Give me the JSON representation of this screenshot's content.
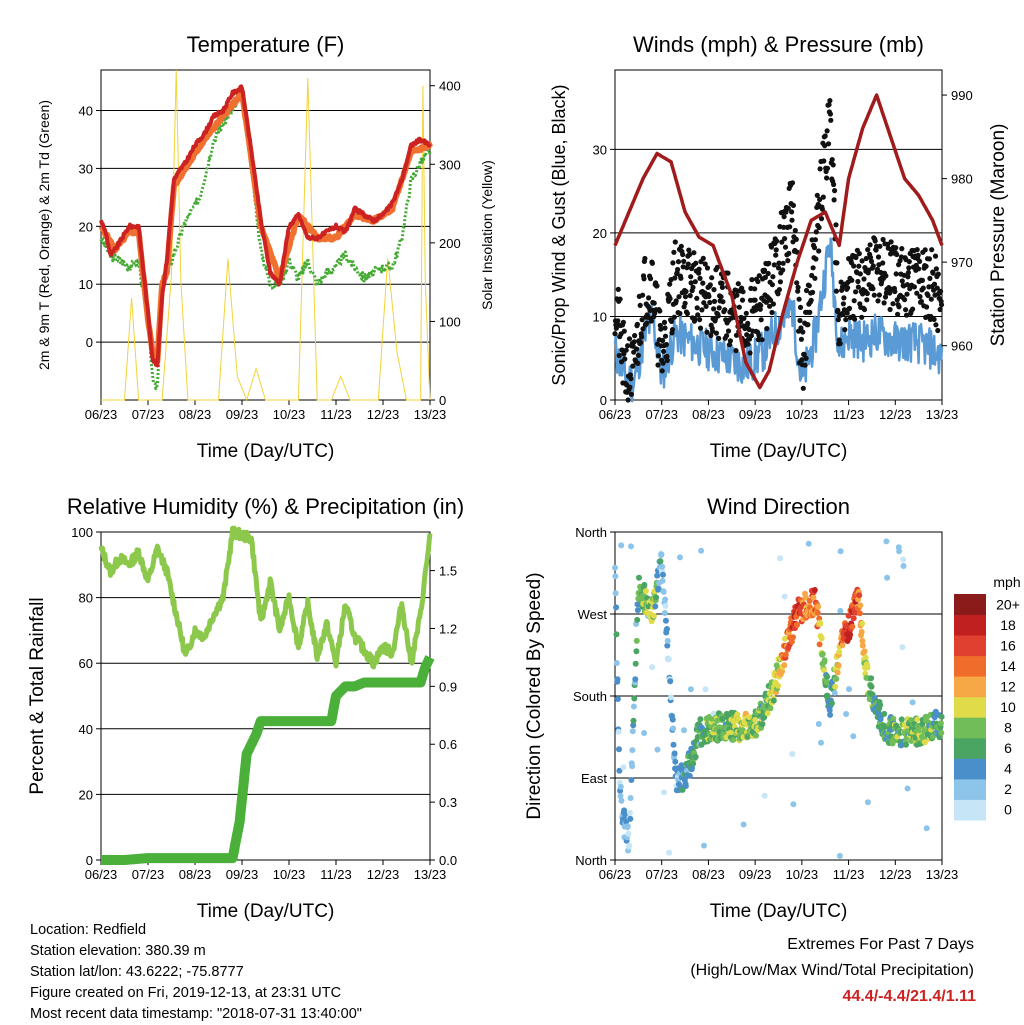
{
  "chart_data": [
    {
      "type": "line",
      "title": "Temperature (F)",
      "xlabel": "Time (Day/UTC)",
      "ylabel": "2m & 9m T (Red, Orange) & 2m Td (Green)",
      "y2label": "Solar Insolation (Yellow)",
      "x_ticks": [
        "06/23",
        "07/23",
        "08/23",
        "09/23",
        "10/23",
        "11/23",
        "12/23",
        "13/23"
      ],
      "ylim": [
        -10,
        47
      ],
      "y_ticks": [
        0,
        10,
        20,
        30,
        40
      ],
      "y2lim": [
        0,
        420
      ],
      "y2_ticks": [
        0,
        100,
        200,
        300,
        400
      ],
      "grid": "horizontal",
      "series": [
        {
          "color": "#cc2222",
          "x": [
            0,
            0.1,
            0.2,
            0.3,
            0.45,
            0.6,
            0.8,
            1.0,
            1.1,
            1.2,
            1.3,
            1.4,
            1.55,
            1.7,
            1.8,
            2.0,
            2.2,
            2.4,
            2.6,
            2.8,
            3.0,
            3.2,
            3.4,
            3.6,
            3.8,
            4.0,
            4.2,
            4.4,
            4.6,
            4.8,
            5.0,
            5.2,
            5.4,
            5.6,
            5.8,
            6.0,
            6.2,
            6.4,
            6.6,
            6.8,
            7.0
          ],
          "values": [
            21,
            19,
            15,
            16,
            18,
            20,
            20,
            5,
            -3,
            -4,
            8,
            14,
            28,
            30,
            31,
            34,
            36,
            39,
            40,
            43,
            44,
            33,
            21,
            12,
            10,
            20,
            22,
            18,
            18,
            19,
            20,
            19,
            23,
            22,
            21,
            22,
            24,
            28,
            34,
            35,
            34
          ]
        },
        {
          "color": "#f07030",
          "x": [
            0,
            0.3,
            0.6,
            0.8,
            1.0,
            1.1,
            1.2,
            1.3,
            1.4,
            1.55,
            1.8,
            2.2,
            2.6,
            3.0,
            3.4,
            3.8,
            4.2,
            4.6,
            5.0,
            5.4,
            5.8,
            6.2,
            6.6,
            7.0
          ],
          "values": [
            20,
            16,
            19,
            19,
            4,
            -2,
            -3,
            10,
            12,
            27,
            30,
            35,
            39,
            43,
            20,
            11,
            22,
            18,
            18,
            22,
            21,
            23,
            33,
            34
          ]
        },
        {
          "color": "#44aa33",
          "x": [
            0,
            0.2,
            0.4,
            0.6,
            0.8,
            1.0,
            1.1,
            1.2,
            1.3,
            1.5,
            1.8,
            2.1,
            2.4,
            2.6,
            2.8,
            3.0,
            3.2,
            3.4,
            3.6,
            3.8,
            4.0,
            4.2,
            4.4,
            4.6,
            4.8,
            5.0,
            5.2,
            5.4,
            5.6,
            5.8,
            6.0,
            6.2,
            6.4,
            6.6,
            6.8,
            7.0
          ],
          "values": [
            18,
            15,
            14,
            13,
            14,
            3,
            -6,
            -8,
            10,
            14,
            21,
            25,
            35,
            38,
            40,
            43,
            30,
            16,
            10,
            10,
            14,
            11,
            14,
            10,
            12,
            13,
            15,
            13,
            11,
            12,
            13,
            13,
            18,
            28,
            31,
            33
          ]
        },
        {
          "color": "#f2d33a",
          "y_axis": "right",
          "x": [
            0,
            0.5,
            0.65,
            0.8,
            1.0,
            1.15,
            1.3,
            1.5,
            1.6,
            1.7,
            1.85,
            2.0,
            2.5,
            2.7,
            2.9,
            3.1,
            3.3,
            3.5,
            3.9,
            4.2,
            4.4,
            4.6,
            4.9,
            5.1,
            5.3,
            5.5,
            5.9,
            6.1,
            6.3,
            6.5,
            6.8,
            6.85,
            6.9,
            7.0
          ],
          "values": [
            0,
            0,
            130,
            0,
            0,
            0,
            0,
            160,
            420,
            150,
            0,
            0,
            0,
            180,
            30,
            0,
            40,
            0,
            0,
            0,
            410,
            0,
            0,
            30,
            0,
            0,
            0,
            180,
            60,
            0,
            0,
            400,
            150,
            0
          ]
        }
      ]
    },
    {
      "type": "scatter",
      "title": "Winds (mph) & Pressure (mb)",
      "xlabel": "Time (Day/UTC)",
      "ylabel": "Sonic/Prop Wind & Gust (Blue, Black)",
      "y2label": "Station Pressure (Maroon)",
      "x_ticks": [
        "06/23",
        "07/23",
        "08/23",
        "09/23",
        "10/23",
        "11/23",
        "12/23",
        "13/23"
      ],
      "ylim": [
        0,
        39.5
      ],
      "y_ticks": [
        0,
        10,
        20,
        30
      ],
      "y2lim": [
        953.5,
        993
      ],
      "y2_ticks": [
        960,
        970,
        980,
        990
      ],
      "grid": "horizontal",
      "series": [
        {
          "color": "#5b9bd5",
          "x": [
            0,
            0.2,
            0.4,
            0.6,
            0.8,
            1.0,
            1.3,
            1.6,
            2.0,
            2.4,
            2.8,
            3.2,
            3.5,
            3.8,
            4.0,
            4.3,
            4.6,
            4.8,
            5.0,
            5.3,
            5.6,
            6.0,
            6.4,
            6.8,
            7.0
          ],
          "values": [
            6,
            3,
            2,
            7,
            10,
            3,
            8,
            7,
            6,
            5,
            4,
            6,
            9,
            11,
            2,
            8,
            19,
            6,
            8,
            7,
            8,
            7,
            7,
            6,
            5
          ]
        },
        {
          "color": "#111111",
          "x": [
            0,
            0.2,
            0.4,
            0.6,
            0.8,
            1.0,
            1.3,
            1.6,
            2.0,
            2.4,
            2.8,
            3.2,
            3.5,
            3.8,
            4.0,
            4.3,
            4.6,
            4.8,
            5.0,
            5.3,
            5.6,
            6.0,
            6.4,
            6.8,
            7.0
          ],
          "values": [
            12,
            4,
            3,
            13,
            14,
            5,
            15,
            14,
            12,
            11,
            9,
            12,
            17,
            23,
            4,
            19,
            34,
            10,
            13,
            14,
            16,
            14,
            15,
            14,
            11
          ]
        },
        {
          "color": "#a01c1c",
          "y_axis": "right",
          "x": [
            0,
            0.3,
            0.6,
            0.9,
            1.2,
            1.5,
            1.8,
            2.1,
            2.5,
            2.8,
            3.1,
            3.3,
            3.6,
            3.9,
            4.2,
            4.5,
            4.8,
            5.0,
            5.3,
            5.6,
            5.9,
            6.2,
            6.5,
            6.8,
            7.0
          ],
          "values": [
            972,
            976,
            980,
            983,
            982,
            976,
            973,
            972,
            966,
            958,
            955,
            957,
            964,
            970,
            975,
            976,
            972,
            980,
            986,
            990,
            985,
            980,
            978,
            975,
            972
          ]
        }
      ]
    },
    {
      "type": "line",
      "title": "Relative Humidity (%) & Precipitation (in)",
      "xlabel": "Time (Day/UTC)",
      "ylabel": "Percent & Total Rainfall",
      "x_ticks": [
        "06/23",
        "07/23",
        "08/23",
        "09/23",
        "10/23",
        "11/23",
        "12/23",
        "13/23"
      ],
      "ylim": [
        0,
        100
      ],
      "y_ticks": [
        0,
        20,
        40,
        60,
        80,
        100
      ],
      "y2lim": [
        0,
        1.7
      ],
      "y2_ticks": [
        "0.0",
        "0.3",
        "0.6",
        "0.9",
        "1.2",
        "1.5"
      ],
      "grid": "horizontal",
      "series": [
        {
          "color": "#8cc84b",
          "x": [
            0,
            0.2,
            0.4,
            0.6,
            0.8,
            1.0,
            1.2,
            1.4,
            1.6,
            1.8,
            2.0,
            2.2,
            2.4,
            2.6,
            2.8,
            3.0,
            3.2,
            3.4,
            3.6,
            3.8,
            4.0,
            4.2,
            4.4,
            4.6,
            4.8,
            5.0,
            5.2,
            5.4,
            5.6,
            5.8,
            6.0,
            6.2,
            6.4,
            6.6,
            6.8,
            7.0
          ],
          "values": [
            95,
            88,
            92,
            90,
            94,
            85,
            95,
            88,
            75,
            62,
            70,
            68,
            75,
            80,
            100,
            99,
            98,
            72,
            85,
            70,
            80,
            65,
            78,
            62,
            72,
            60,
            78,
            68,
            64,
            60,
            65,
            63,
            78,
            60,
            75,
            99
          ]
        },
        {
          "color": "#4ab03a",
          "y_axis": "right",
          "x": [
            0,
            0.5,
            1.0,
            1.5,
            2.0,
            2.5,
            2.8,
            2.95,
            3.1,
            3.2,
            3.3,
            3.4,
            3.7,
            4.0,
            4.3,
            4.6,
            4.9,
            5.0,
            5.2,
            5.4,
            5.6,
            5.8,
            6.0,
            6.3,
            6.6,
            6.8,
            6.9,
            7.0
          ],
          "values": [
            0,
            0,
            0.01,
            0.01,
            0.01,
            0.01,
            0.01,
            0.2,
            0.55,
            0.6,
            0.65,
            0.72,
            0.72,
            0.72,
            0.72,
            0.72,
            0.72,
            0.85,
            0.9,
            0.9,
            0.92,
            0.92,
            0.92,
            0.92,
            0.92,
            0.92,
            1.0,
            1.05
          ]
        }
      ]
    },
    {
      "type": "scatter",
      "title": "Wind Direction",
      "xlabel": "Time (Day/UTC)",
      "ylabel": "Direction (Colored By Speed)",
      "x_ticks": [
        "06/23",
        "07/23",
        "08/23",
        "09/23",
        "10/23",
        "11/23",
        "12/23",
        "13/23"
      ],
      "ylim": [
        0,
        360
      ],
      "y_ticks": [
        "North",
        "East",
        "South",
        "West",
        "North"
      ],
      "grid": "horizontal",
      "colorbar_title": "mph",
      "colorbar_labels": [
        "0",
        "2",
        "4",
        "6",
        "8",
        "10",
        "12",
        "14",
        "16",
        "18",
        "20+"
      ],
      "colorbar_colors": [
        "#c6e6f7",
        "#8dc4ea",
        "#4a8fc9",
        "#4aa563",
        "#70bd5a",
        "#e0db48",
        "#f5a845",
        "#f06c2b",
        "#e04030",
        "#c02020",
        "#8b1a1a"
      ],
      "x": [
        0,
        0.1,
        0.2,
        0.3,
        0.5,
        0.8,
        1.0,
        1.3,
        1.5,
        1.8,
        2.1,
        2.4,
        2.7,
        3.0,
        3.2,
        3.4,
        3.7,
        3.9,
        4.1,
        4.3,
        4.5,
        4.6,
        4.8,
        5.0,
        5.2,
        5.4,
        5.6,
        5.8,
        6.0,
        6.3,
        6.6,
        6.9,
        7.0
      ],
      "values": [
        320,
        80,
        40,
        20,
        300,
        270,
        330,
        90,
        90,
        140,
        145,
        148,
        145,
        150,
        165,
        190,
        240,
        270,
        280,
        285,
        200,
        170,
        230,
        255,
        290,
        200,
        165,
        145,
        140,
        140,
        142,
        150,
        145
      ],
      "speeds": [
        4,
        2,
        3,
        2,
        6,
        9,
        2,
        2,
        5,
        6,
        8,
        7,
        9,
        8,
        7,
        8,
        14,
        17,
        13,
        15,
        7,
        4,
        12,
        18,
        14,
        8,
        6,
        6,
        7,
        7,
        8,
        6,
        6
      ]
    }
  ],
  "footer": {
    "location": "Location: Redfield",
    "elevation": "Station elevation: 380.39 m",
    "latlon": "Station lat/lon: 43.6222; -75.8777",
    "created": "Figure created on Fri, 2019-12-13, at 23:31 UTC",
    "timestamp": "Most recent data timestamp: \"2018-07-31 13:40:00\""
  },
  "extremes": {
    "title": "Extremes For Past 7 Days",
    "subtitle": "(High/Low/Max Wind/Total Precipitation)",
    "values": "44.4/-4.4/21.4/1.11",
    "values_color": "#cc2222"
  }
}
